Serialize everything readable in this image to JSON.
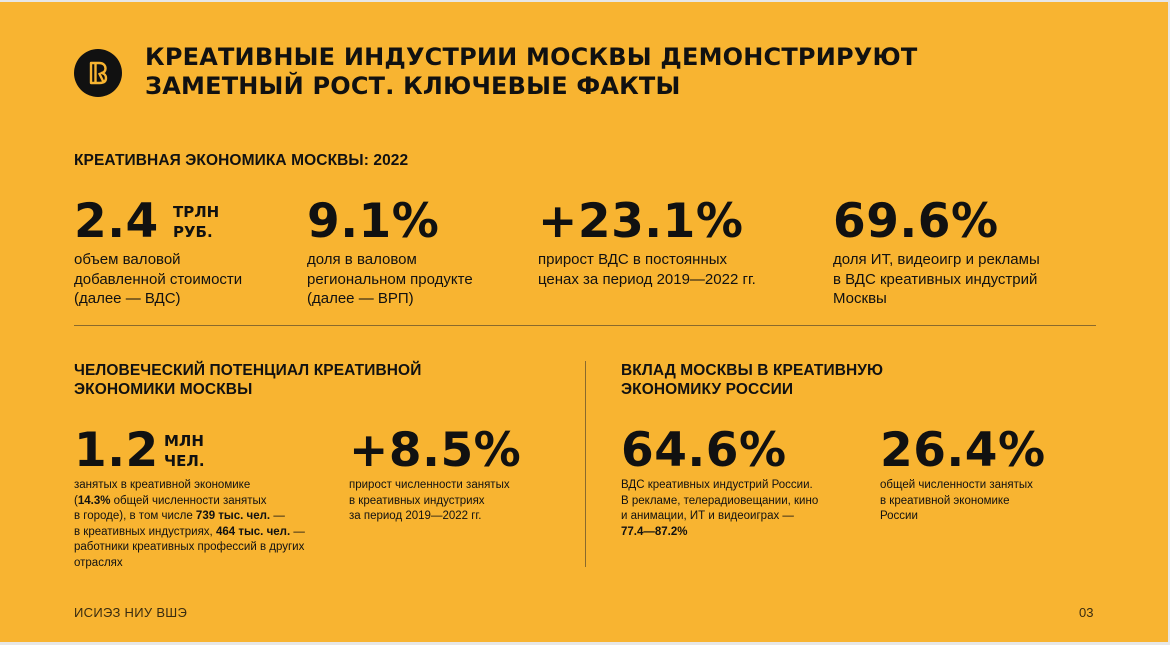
{
  "colors": {
    "background": "#f8b431",
    "text": "#111111"
  },
  "logo": {
    "icon": "hse-logo-icon"
  },
  "title": [
    "КРЕАТИВНЫЕ ИНДУСТРИИ МОСКВЫ ДЕМОНСТРИРУЮТ",
    "ЗАМЕТНЫЙ РОСТ. КЛЮЧЕВЫЕ ФАКТЫ"
  ],
  "economy": {
    "heading": "КРЕАТИВНАЯ ЭКОНОМИКА МОСКВЫ: 2022",
    "facts": [
      {
        "value": "2.4",
        "unit": [
          "ТРЛН",
          "РУБ."
        ],
        "desc": [
          "объем валовой",
          "добавленной стоимости",
          "(далее — ВДС)"
        ]
      },
      {
        "value": "9.1%",
        "desc": [
          "доля в валовом",
          "региональном продукте",
          "(далее — ВРП)"
        ]
      },
      {
        "value": "+23.1%",
        "desc": [
          "прирост ВДС в постоянных",
          "ценах за период 2019—2022 гг."
        ]
      },
      {
        "value": "69.6%",
        "desc": [
          "доля ИТ, видеоигр и рекламы",
          "в ВДС креативных индустрий",
          "Москвы"
        ]
      }
    ]
  },
  "human": {
    "heading": [
      "ЧЕЛОВЕЧЕСКИЙ ПОТЕНЦИАЛ КРЕАТИВНОЙ",
      "ЭКОНОМИКИ МОСКВЫ"
    ],
    "employed": {
      "value": "1.2",
      "unit": [
        "МЛН",
        "ЧЕЛ."
      ],
      "desc": {
        "l1": "занятых в креативной экономике",
        "l2_open": "(",
        "l2_bold": "14.3%",
        "l2_rest": " общей численности занятых",
        "l3_a": "в городе), в том числе ",
        "l3_bold": "739 тыс. чел.",
        "l3_b": " —",
        "l4_a": "в креативных индустриях, ",
        "l4_bold": "464 тыс. чел.",
        "l4_b": " —",
        "l5": "работники креативных профессий в других",
        "l6": "отраслях"
      }
    },
    "growth": {
      "value": "+8.5%",
      "desc": [
        "прирост численности занятых",
        "в креативных индустриях",
        "за период 2019—2022 гг."
      ]
    }
  },
  "contribution": {
    "heading": [
      "ВКЛАД МОСКВЫ В КРЕАТИВНУЮ",
      "ЭКОНОМИКУ РОССИИ"
    ],
    "gva": {
      "value": "64.6%",
      "desc": [
        "ВДС креативных индустрий России.",
        "В рекламе, телерадиовещании, кино",
        "и анимации, ИТ и видеоиграх —"
      ],
      "desc_bold": "77.4—87.2%"
    },
    "employment": {
      "value": "26.4%",
      "desc": [
        "общей численности занятых",
        "в креативной экономике",
        "России"
      ]
    }
  },
  "footer": {
    "left": "ИСИЭЗ НИУ ВШЭ",
    "page": "03"
  }
}
